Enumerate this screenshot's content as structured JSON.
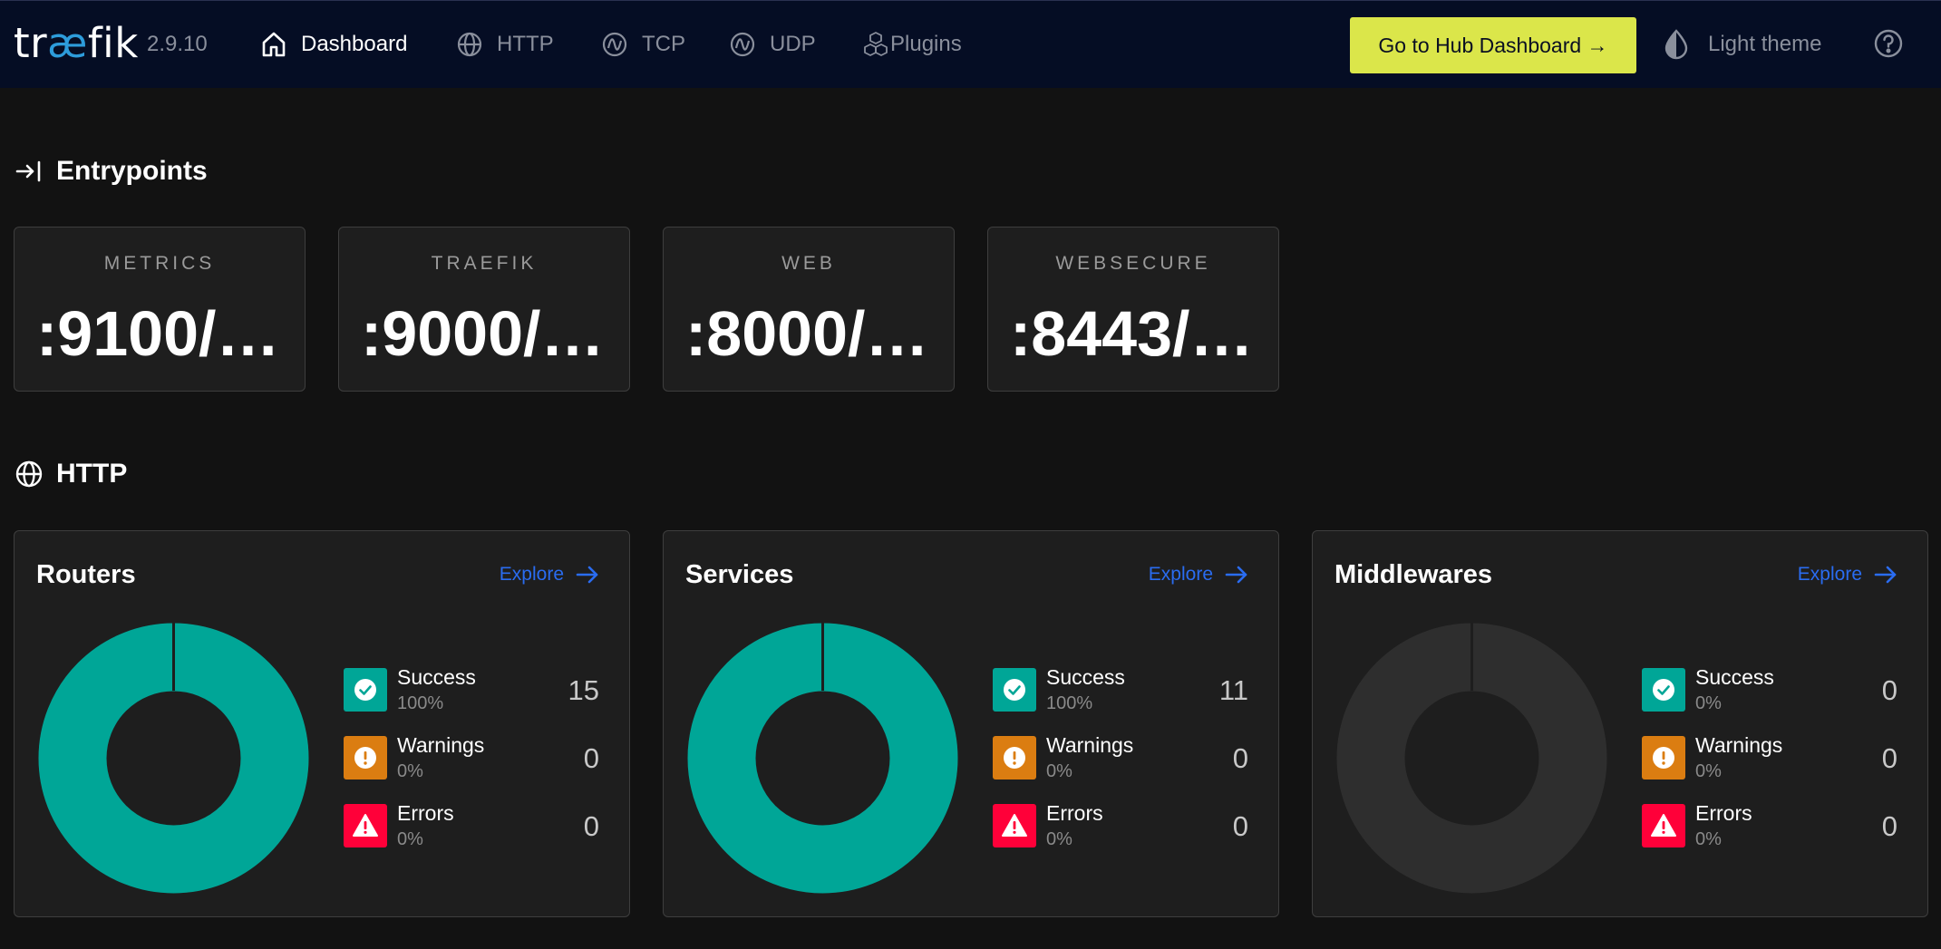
{
  "header": {
    "logo_prefix": "tr",
    "logo_ae": "æ",
    "logo_suffix": "fik",
    "version": "2.9.10",
    "nav": [
      {
        "label": "Dashboard",
        "icon": "home-icon",
        "active": true
      },
      {
        "label": "HTTP",
        "icon": "globe-icon",
        "active": false
      },
      {
        "label": "TCP",
        "icon": "tcp-icon",
        "active": false
      },
      {
        "label": "UDP",
        "icon": "udp-icon",
        "active": false
      },
      {
        "label": "Plugins",
        "icon": "cubes-icon",
        "active": false
      }
    ],
    "hub_button": "Go to Hub Dashboard →",
    "theme_label": "Light theme"
  },
  "entrypoints": {
    "title": "Entrypoints",
    "items": [
      {
        "name": "METRICS",
        "address": ":9100/…"
      },
      {
        "name": "TRAEFIK",
        "address": ":9000/…"
      },
      {
        "name": "WEB",
        "address": ":8000/…"
      },
      {
        "name": "WEBSECURE",
        "address": ":8443/…"
      }
    ]
  },
  "http": {
    "title": "HTTP",
    "cards": [
      {
        "title": "Routers",
        "explore": "Explore",
        "success": {
          "label": "Success",
          "pct": "100%",
          "count": "15"
        },
        "warnings": {
          "label": "Warnings",
          "pct": "0%",
          "count": "0"
        },
        "errors": {
          "label": "Errors",
          "pct": "0%",
          "count": "0"
        },
        "success_fraction": 1.0
      },
      {
        "title": "Services",
        "explore": "Explore",
        "success": {
          "label": "Success",
          "pct": "100%",
          "count": "11"
        },
        "warnings": {
          "label": "Warnings",
          "pct": "0%",
          "count": "0"
        },
        "errors": {
          "label": "Errors",
          "pct": "0%",
          "count": "0"
        },
        "success_fraction": 1.0
      },
      {
        "title": "Middlewares",
        "explore": "Explore",
        "success": {
          "label": "Success",
          "pct": "0%",
          "count": "0"
        },
        "warnings": {
          "label": "Warnings",
          "pct": "0%",
          "count": "0"
        },
        "errors": {
          "label": "Errors",
          "pct": "0%",
          "count": "0"
        },
        "success_fraction": 0.0
      }
    ]
  },
  "colors": {
    "success": "#00a697",
    "warning": "#db7d11",
    "error": "#ff0039",
    "accent": "#dbe64a",
    "link": "#2a6cf0",
    "donut_empty": "#2e2e2e"
  }
}
